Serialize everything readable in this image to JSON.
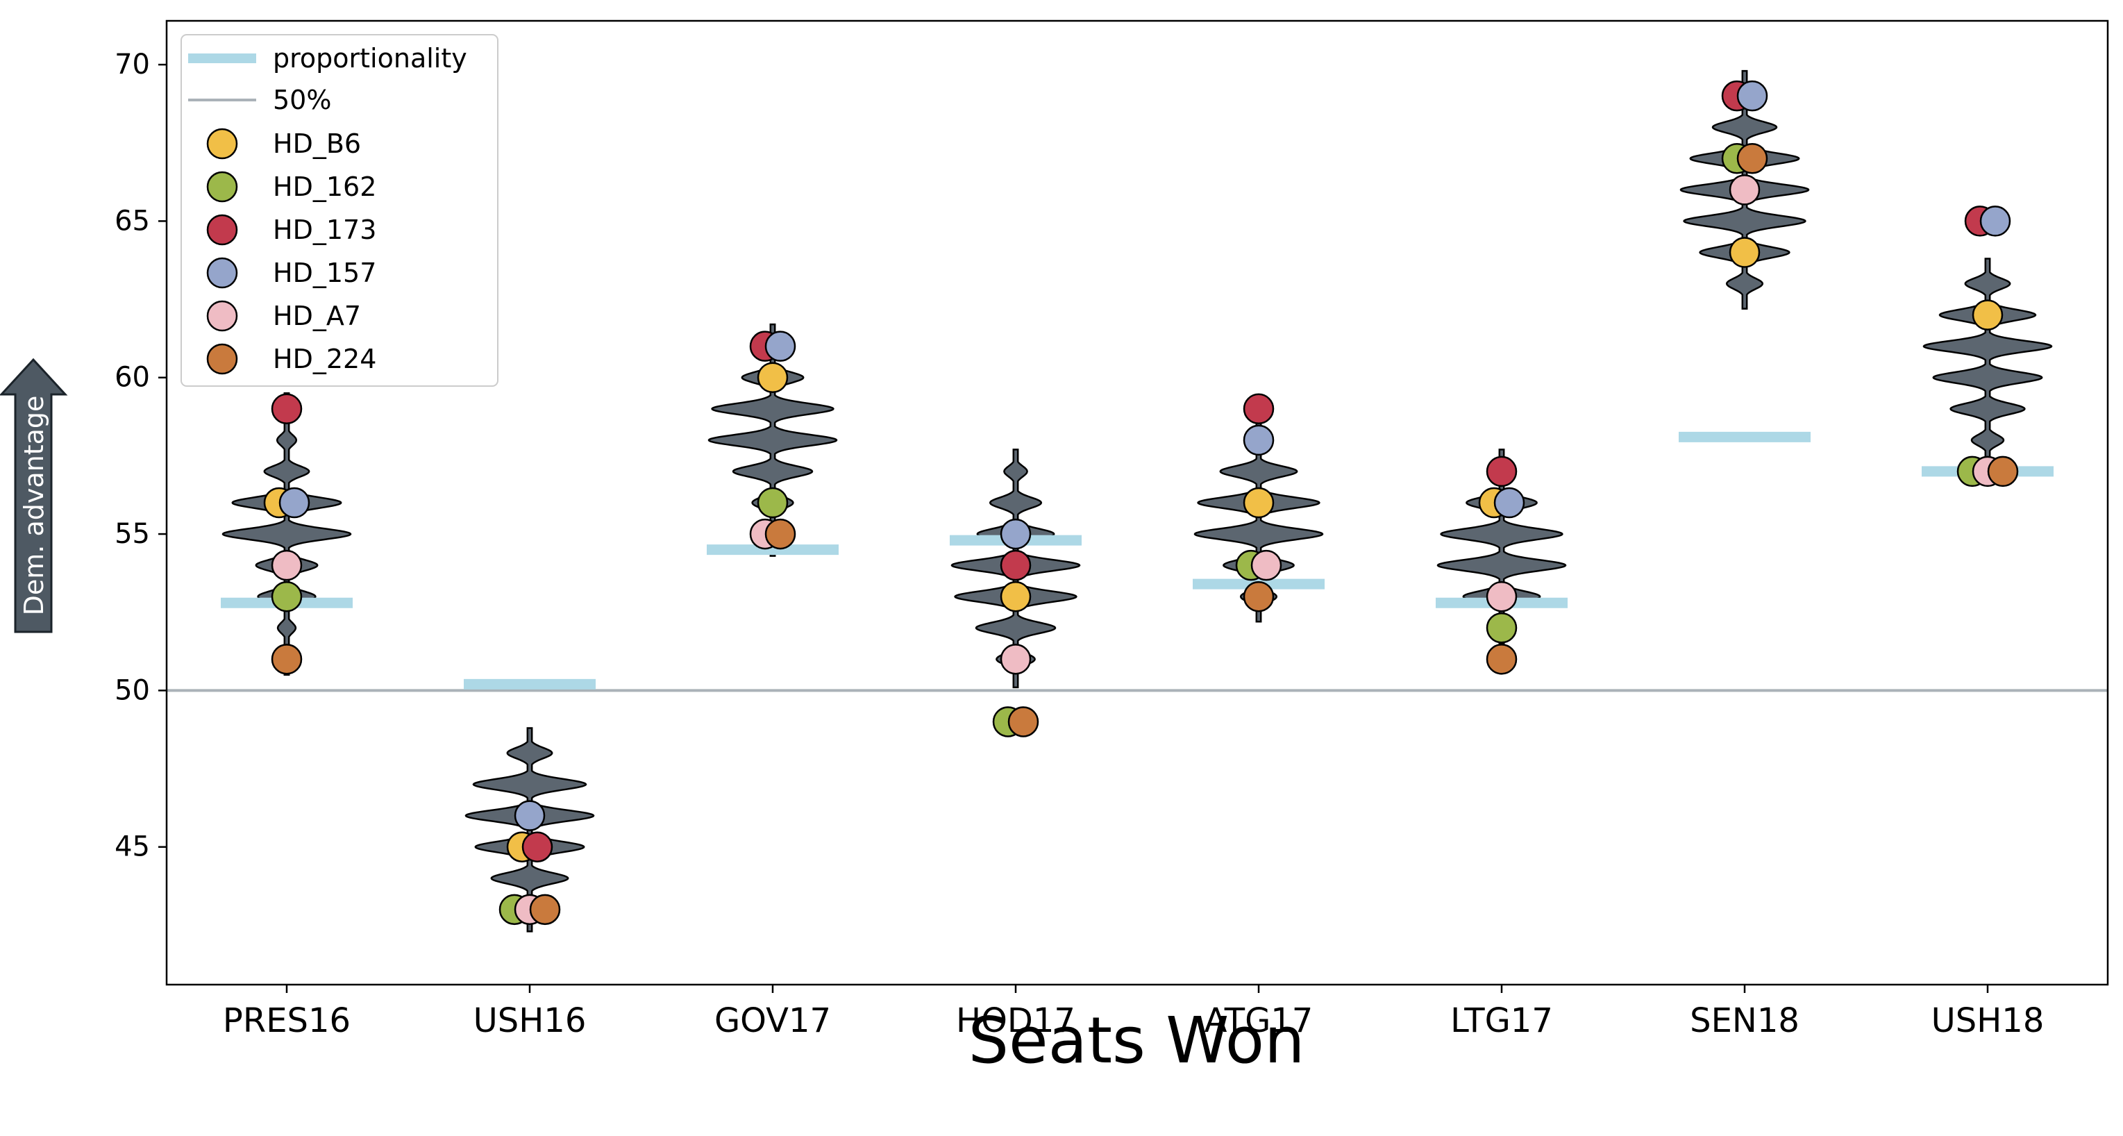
{
  "chart_data": {
    "type": "violin",
    "title": "",
    "xlabel": "Seats Won",
    "ylabel": "",
    "side_annotation": "Dem. advantage",
    "categories": [
      "PRES16",
      "USH16",
      "GOV17",
      "HOD17",
      "ATG17",
      "LTG17",
      "SEN18",
      "USH18"
    ],
    "ylim": [
      40.6,
      71.4
    ],
    "yticks": [
      45,
      50,
      55,
      60,
      65,
      70
    ],
    "grid": false,
    "legend_position": "top-left",
    "reference_line": {
      "name": "50%",
      "value": 50,
      "color": "#aab2b8"
    },
    "proportionality": {
      "name": "proportionality",
      "color": "#add8e6",
      "values": [
        52.8,
        50.2,
        54.5,
        54.8,
        53.4,
        52.8,
        58.1,
        57.0
      ]
    },
    "violin_color": "#5c6670",
    "violins": [
      {
        "category": "PRES16",
        "min": 50.5,
        "max": 59.5,
        "modes": [
          51,
          52,
          53,
          54,
          55,
          56,
          57,
          58,
          59
        ],
        "widths": [
          0.1,
          0.14,
          0.45,
          0.48,
          1.0,
          0.85,
          0.35,
          0.15,
          0.1
        ]
      },
      {
        "category": "USH16",
        "min": 42.3,
        "max": 48.8,
        "modes": [
          43,
          44,
          45,
          46,
          47,
          48
        ],
        "widths": [
          0.35,
          0.6,
          0.85,
          1.0,
          0.88,
          0.35
        ]
      },
      {
        "category": "GOV17",
        "min": 54.3,
        "max": 61.7,
        "modes": [
          55,
          56,
          57,
          58,
          59,
          60,
          61
        ],
        "widths": [
          0.2,
          0.32,
          0.62,
          1.0,
          0.95,
          0.48,
          0.12
        ]
      },
      {
        "category": "HOD17",
        "min": 50.1,
        "max": 57.7,
        "modes": [
          51,
          52,
          53,
          54,
          55,
          56,
          57
        ],
        "widths": [
          0.3,
          0.62,
          0.95,
          1.0,
          0.6,
          0.4,
          0.18
        ]
      },
      {
        "category": "ATG17",
        "min": 52.2,
        "max": 58.7,
        "modes": [
          53,
          54,
          55,
          56,
          57,
          58
        ],
        "widths": [
          0.28,
          0.55,
          1.0,
          0.95,
          0.6,
          0.18
        ]
      },
      {
        "category": "LTG17",
        "min": 51.5,
        "max": 57.7,
        "modes": [
          52,
          53,
          54,
          55,
          56,
          57
        ],
        "widths": [
          0.12,
          0.6,
          1.0,
          0.95,
          0.55,
          0.2
        ]
      },
      {
        "category": "SEN18",
        "min": 62.2,
        "max": 69.8,
        "modes": [
          63,
          64,
          65,
          66,
          67,
          68,
          69
        ],
        "widths": [
          0.28,
          0.7,
          0.95,
          1.0,
          0.85,
          0.5,
          0.18
        ]
      },
      {
        "category": "USH18",
        "min": 56.7,
        "max": 63.8,
        "modes": [
          57,
          58,
          59,
          60,
          61,
          62,
          63
        ],
        "widths": [
          0.2,
          0.25,
          0.58,
          0.85,
          1.0,
          0.75,
          0.35
        ]
      }
    ],
    "series": [
      {
        "name": "HD_B6",
        "color": "#f1bf47",
        "values": [
          56,
          45,
          60,
          53,
          56,
          56,
          64,
          62
        ]
      },
      {
        "name": "HD_162",
        "color": "#9cb84a",
        "values": [
          53,
          43,
          56,
          49,
          54,
          52,
          67,
          57
        ]
      },
      {
        "name": "HD_173",
        "color": "#c23a4d",
        "values": [
          59,
          45,
          61,
          54,
          59,
          57,
          69,
          65
        ]
      },
      {
        "name": "HD_157",
        "color": "#95a5cb",
        "values": [
          56,
          46,
          61,
          55,
          58,
          56,
          69,
          65
        ]
      },
      {
        "name": "HD_A7",
        "color": "#efbcc4",
        "values": [
          54,
          43,
          55,
          51,
          54,
          53,
          66,
          57
        ]
      },
      {
        "name": "HD_224",
        "color": "#c97a3d",
        "values": [
          51,
          43,
          55,
          49,
          53,
          51,
          67,
          57
        ]
      }
    ]
  }
}
